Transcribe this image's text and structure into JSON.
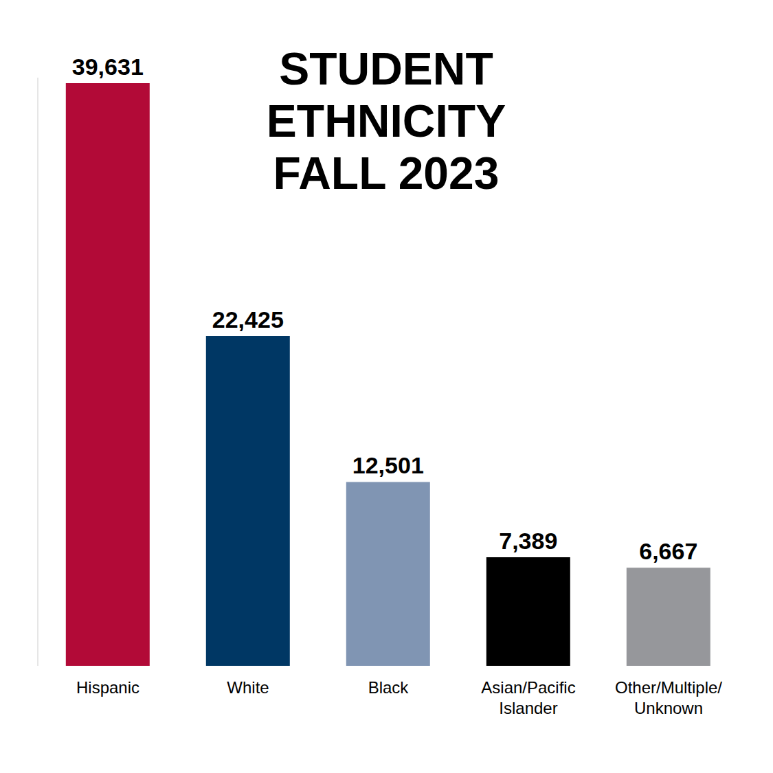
{
  "chart_data": {
    "type": "bar",
    "title": "STUDENT\nETHNICITY\nFALL 2023",
    "categories": [
      "Hispanic",
      "White",
      "Black",
      "Asian/Pacific Islander",
      "Other/Multiple/Unknown"
    ],
    "values": [
      39631,
      22425,
      12501,
      7389,
      6667
    ],
    "value_labels": [
      "39,631",
      "22,425",
      "12,501",
      "7,389",
      "6,667"
    ],
    "colors": [
      "#b20a37",
      "#003764",
      "#8095b3",
      "#000000",
      "#96979b"
    ],
    "ylim": [
      0,
      40000
    ],
    "yticks": [],
    "grid": false,
    "data_labels": true,
    "tick_labels": "x"
  }
}
